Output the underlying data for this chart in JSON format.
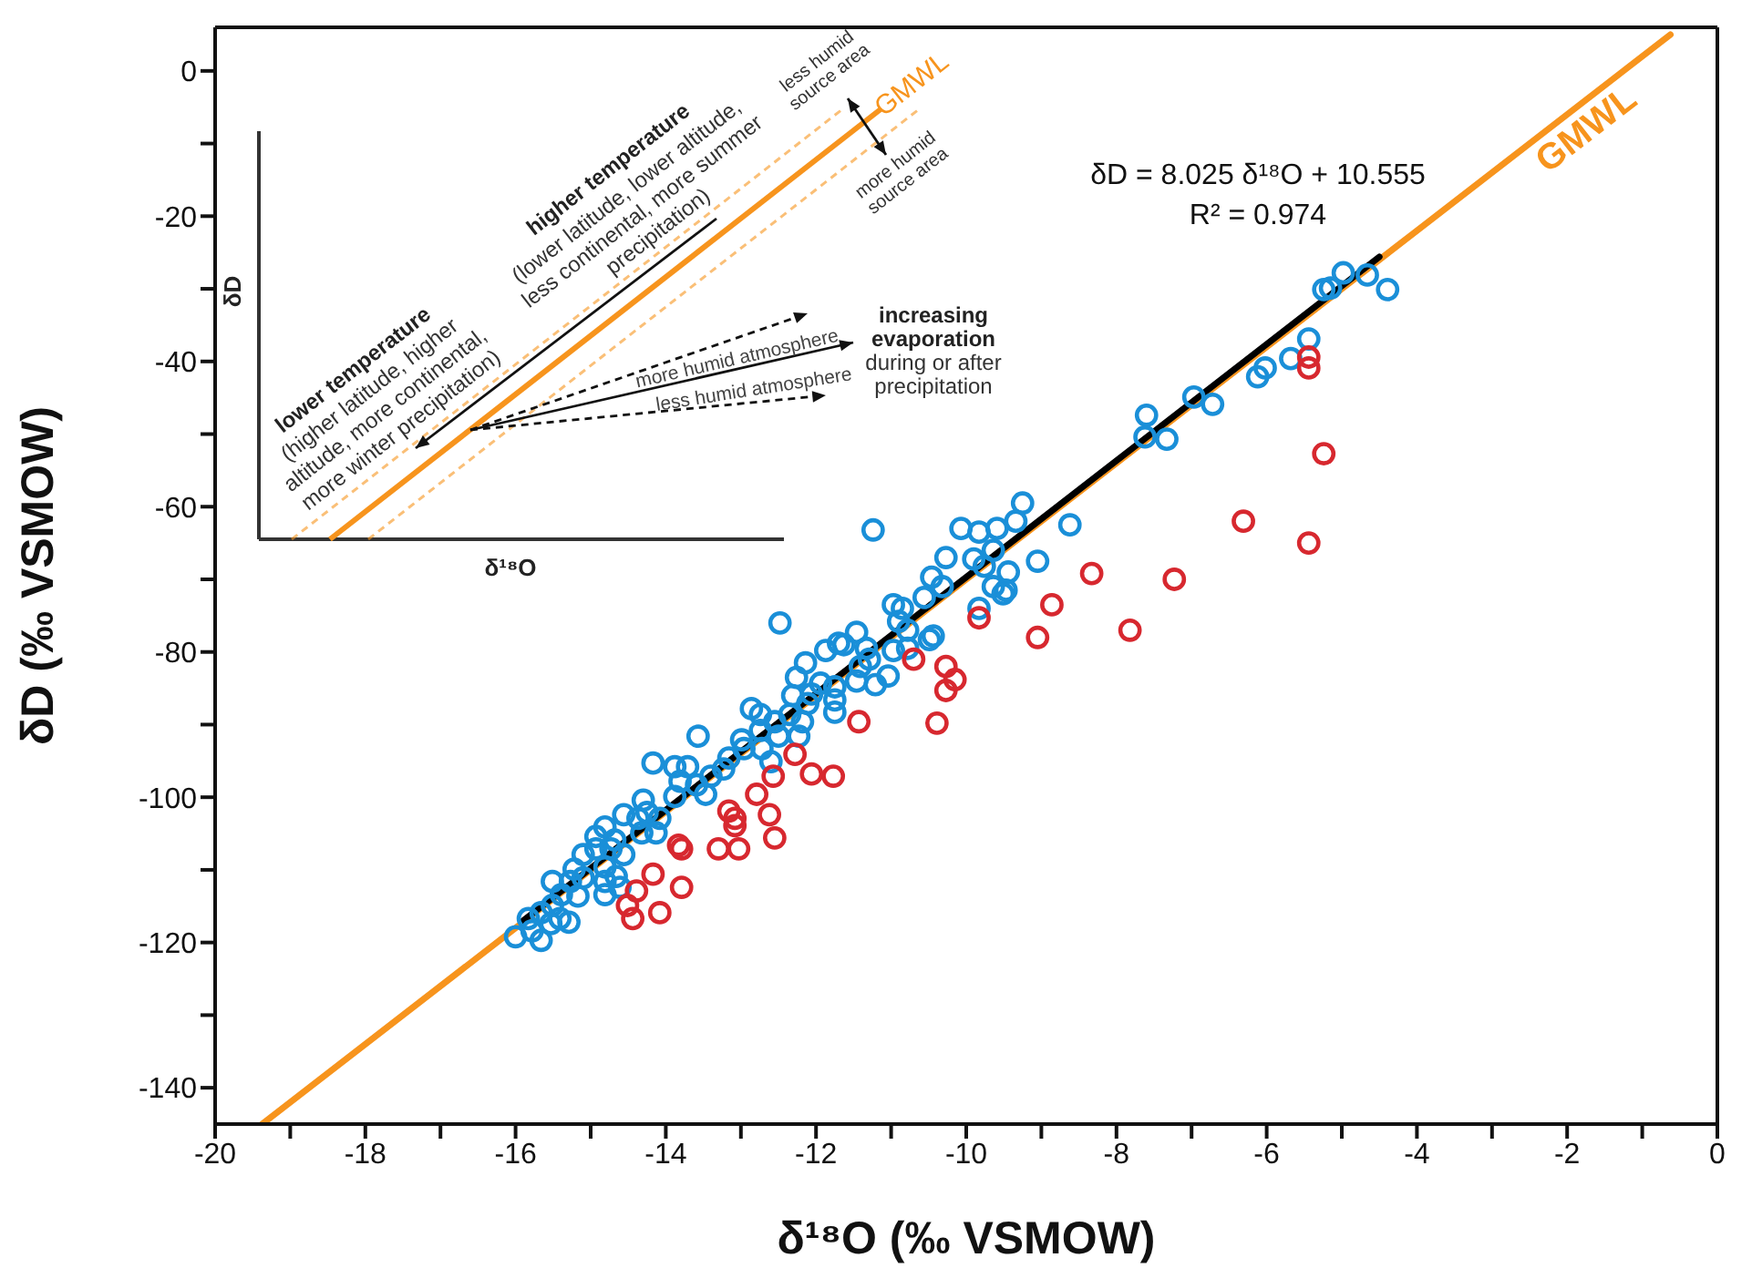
{
  "chart_data": {
    "type": "scatter",
    "xlabel": "δ¹⁸O (‰ VSMOW)",
    "ylabel": "δD (‰ VSMOW)",
    "xlim": [
      -20,
      0
    ],
    "ylim": [
      -145,
      6
    ],
    "xticks": [
      -20,
      {
        "value": -19,
        "label": null
      },
      -18,
      {
        "value": -17,
        "label": null
      },
      -16,
      {
        "value": -15,
        "label": null
      },
      -14,
      {
        "value": -13,
        "label": null
      },
      -12,
      {
        "value": -11,
        "label": null
      },
      -10,
      {
        "value": -9,
        "label": null
      },
      -8,
      {
        "value": -7,
        "label": null
      },
      -6,
      {
        "value": -5,
        "label": null
      },
      -4,
      {
        "value": -3,
        "label": null
      },
      -2,
      {
        "value": -1,
        "label": null
      },
      0
    ],
    "yticks": [
      0,
      {
        "value": -10,
        "label": null
      },
      -20,
      {
        "value": -30,
        "label": null
      },
      -40,
      {
        "value": -50,
        "label": null
      },
      -60,
      {
        "value": -70,
        "label": null
      },
      -80,
      {
        "value": -90,
        "label": null
      },
      -100,
      {
        "value": -110,
        "label": null
      },
      -120,
      {
        "value": -130,
        "label": null
      },
      -140
    ],
    "marker": "circle",
    "series": [
      {
        "type": "line",
        "name": "GMWL",
        "marker": "none",
        "color": "#f7941d",
        "x": [
          -19.375,
          -0.625
        ],
        "values": [
          -145,
          5
        ]
      },
      {
        "type": "line",
        "marker": "none",
        "color": "#000000",
        "x": [
          -15.9,
          -4.5
        ],
        "values": [
          -117,
          -25.6
        ]
      },
      {
        "color": "#1a8fd8",
        "x": [
          -4.98,
          -4.66,
          -4.39,
          -5.24,
          -5.15,
          -5.44,
          -5.68,
          -6.02,
          -6.12,
          -6.97,
          -6.72,
          -7.33,
          -7.6,
          -7.62,
          -9.25,
          -9.34,
          -8.62,
          -9.05,
          -9.44,
          -9.47,
          -9.59,
          -9.83,
          -10.07,
          -11.24,
          -9.64,
          -9.9,
          -9.76,
          -10.27,
          -10.46,
          -10.32,
          -9.64,
          -9.51,
          -10.56,
          -9.83,
          -10.44,
          -10.85,
          -10.97,
          -10.9,
          -10.78,
          -10.97,
          -10.78,
          -11.46,
          -11.33,
          -11.29,
          -11.63,
          -11.87,
          -11.7,
          -11.04,
          -11.21,
          -11.46,
          -11.75,
          -11.94,
          -12.06,
          -11.75,
          -11.75,
          -12.11,
          -12.18,
          -12.48,
          -10.49,
          -11.41,
          -12.14,
          -12.26,
          -12.31,
          -12.35,
          -12.86,
          -12.74,
          -12.55,
          -12.23,
          -12.5,
          -12.74,
          -12.99,
          -12.96,
          -12.72,
          -12.6,
          -13.16,
          -13.23,
          -13.57,
          -13.4,
          -13.59,
          -13.47,
          -13.81,
          -13.88,
          -13.71,
          -13.88,
          -14.17,
          -14.3,
          -14.25,
          -14.08,
          -14.37,
          -14.56,
          -14.13,
          -14.32,
          -14.68,
          -14.81,
          -14.93,
          -14.93,
          -14.73,
          -14.56,
          -15.1,
          -15.22,
          -14.81,
          -14.66,
          -14.81,
          -14.61,
          -14.81,
          -15.1,
          -15.27,
          -15.51,
          -15.39,
          -15.17,
          -15.51,
          -15.66,
          -15.41,
          -15.83,
          -15.78,
          -15.53,
          -15.29,
          -16.0,
          -15.66
        ],
        "values": [
          -27.8,
          -28.1,
          -30.1,
          -30.1,
          -29.9,
          -36.9,
          -39.6,
          -40.9,
          -42.1,
          -44.9,
          -45.9,
          -50.7,
          -47.4,
          -50.4,
          -59.5,
          -62.0,
          -62.5,
          -67.5,
          -69.0,
          -71.5,
          -63.0,
          -63.5,
          -63.0,
          -63.2,
          -66.0,
          -67.2,
          -68.2,
          -67.0,
          -69.7,
          -71.0,
          -71.0,
          -72.0,
          -72.5,
          -74.0,
          -77.8,
          -74.0,
          -73.5,
          -75.8,
          -77.0,
          -79.8,
          -79.5,
          -77.3,
          -79.5,
          -81.0,
          -79.0,
          -79.8,
          -78.8,
          -83.3,
          -84.5,
          -84.0,
          -84.8,
          -84.3,
          -85.8,
          -86.6,
          -88.3,
          -87.1,
          -89.6,
          -76.0,
          -78.3,
          -82.0,
          -81.5,
          -83.5,
          -86.0,
          -88.6,
          -87.8,
          -88.6,
          -89.6,
          -91.6,
          -91.6,
          -90.8,
          -92.1,
          -93.3,
          -93.3,
          -95.1,
          -94.6,
          -96.1,
          -91.6,
          -97.1,
          -98.3,
          -99.6,
          -97.8,
          -95.8,
          -95.8,
          -99.9,
          -95.3,
          -100.4,
          -102.1,
          -102.9,
          -102.9,
          -102.4,
          -104.9,
          -104.9,
          -105.9,
          -104.1,
          -105.4,
          -107.1,
          -107.1,
          -107.9,
          -107.9,
          -109.9,
          -109.6,
          -110.9,
          -111.6,
          -112.4,
          -113.4,
          -111.1,
          -111.6,
          -111.6,
          -113.4,
          -113.6,
          -114.9,
          -115.9,
          -116.7,
          -116.7,
          -118.4,
          -117.4,
          -117.2,
          -119.2,
          -119.7
        ]
      },
      {
        "color": "#d7282f",
        "x": [
          -5.44,
          -5.44,
          -5.24,
          -6.31,
          -5.44,
          -8.33,
          -7.23,
          -8.86,
          -9.05,
          -7.82,
          -9.83,
          -10.7,
          -10.27,
          -10.15,
          -10.27,
          -11.43,
          -10.39,
          -12.28,
          -12.06,
          -11.77,
          -12.79,
          -12.57,
          -12.62,
          -12.55,
          -13.16,
          -13.08,
          -13.08,
          -13.3,
          -13.03,
          -13.83,
          -13.79,
          -14.17,
          -13.79,
          -14.39,
          -14.51,
          -14.44,
          -14.08
        ],
        "values": [
          -39.4,
          -40.9,
          -52.7,
          -62.0,
          -65.0,
          -69.2,
          -70.0,
          -73.5,
          -78.0,
          -77.0,
          -75.3,
          -81.0,
          -82.0,
          -83.8,
          -85.3,
          -89.6,
          -89.8,
          -94.1,
          -96.8,
          -97.1,
          -99.6,
          -97.1,
          -102.4,
          -105.6,
          -101.9,
          -102.9,
          -103.9,
          -107.1,
          -107.1,
          -106.6,
          -107.1,
          -110.6,
          -112.4,
          -112.9,
          -114.9,
          -116.7,
          -115.9
        ]
      }
    ],
    "annotations": [
      "δD = 8.025 δ¹⁸O + 10.555",
      "R² = 0.974",
      "GMWL",
      "less humid source area",
      "more humid source area",
      "higher temperature",
      "(lower latitude, lower altitude, less continental, more summer precipitation)",
      "lower temperature",
      "(higher latitude, higher altitude, more continental, more winter precipitation)",
      "more humid atmosphere",
      "less humid atmosphere",
      "increasing evaporation",
      "during or after precipitation",
      "δD",
      "δ¹⁸O"
    ]
  }
}
